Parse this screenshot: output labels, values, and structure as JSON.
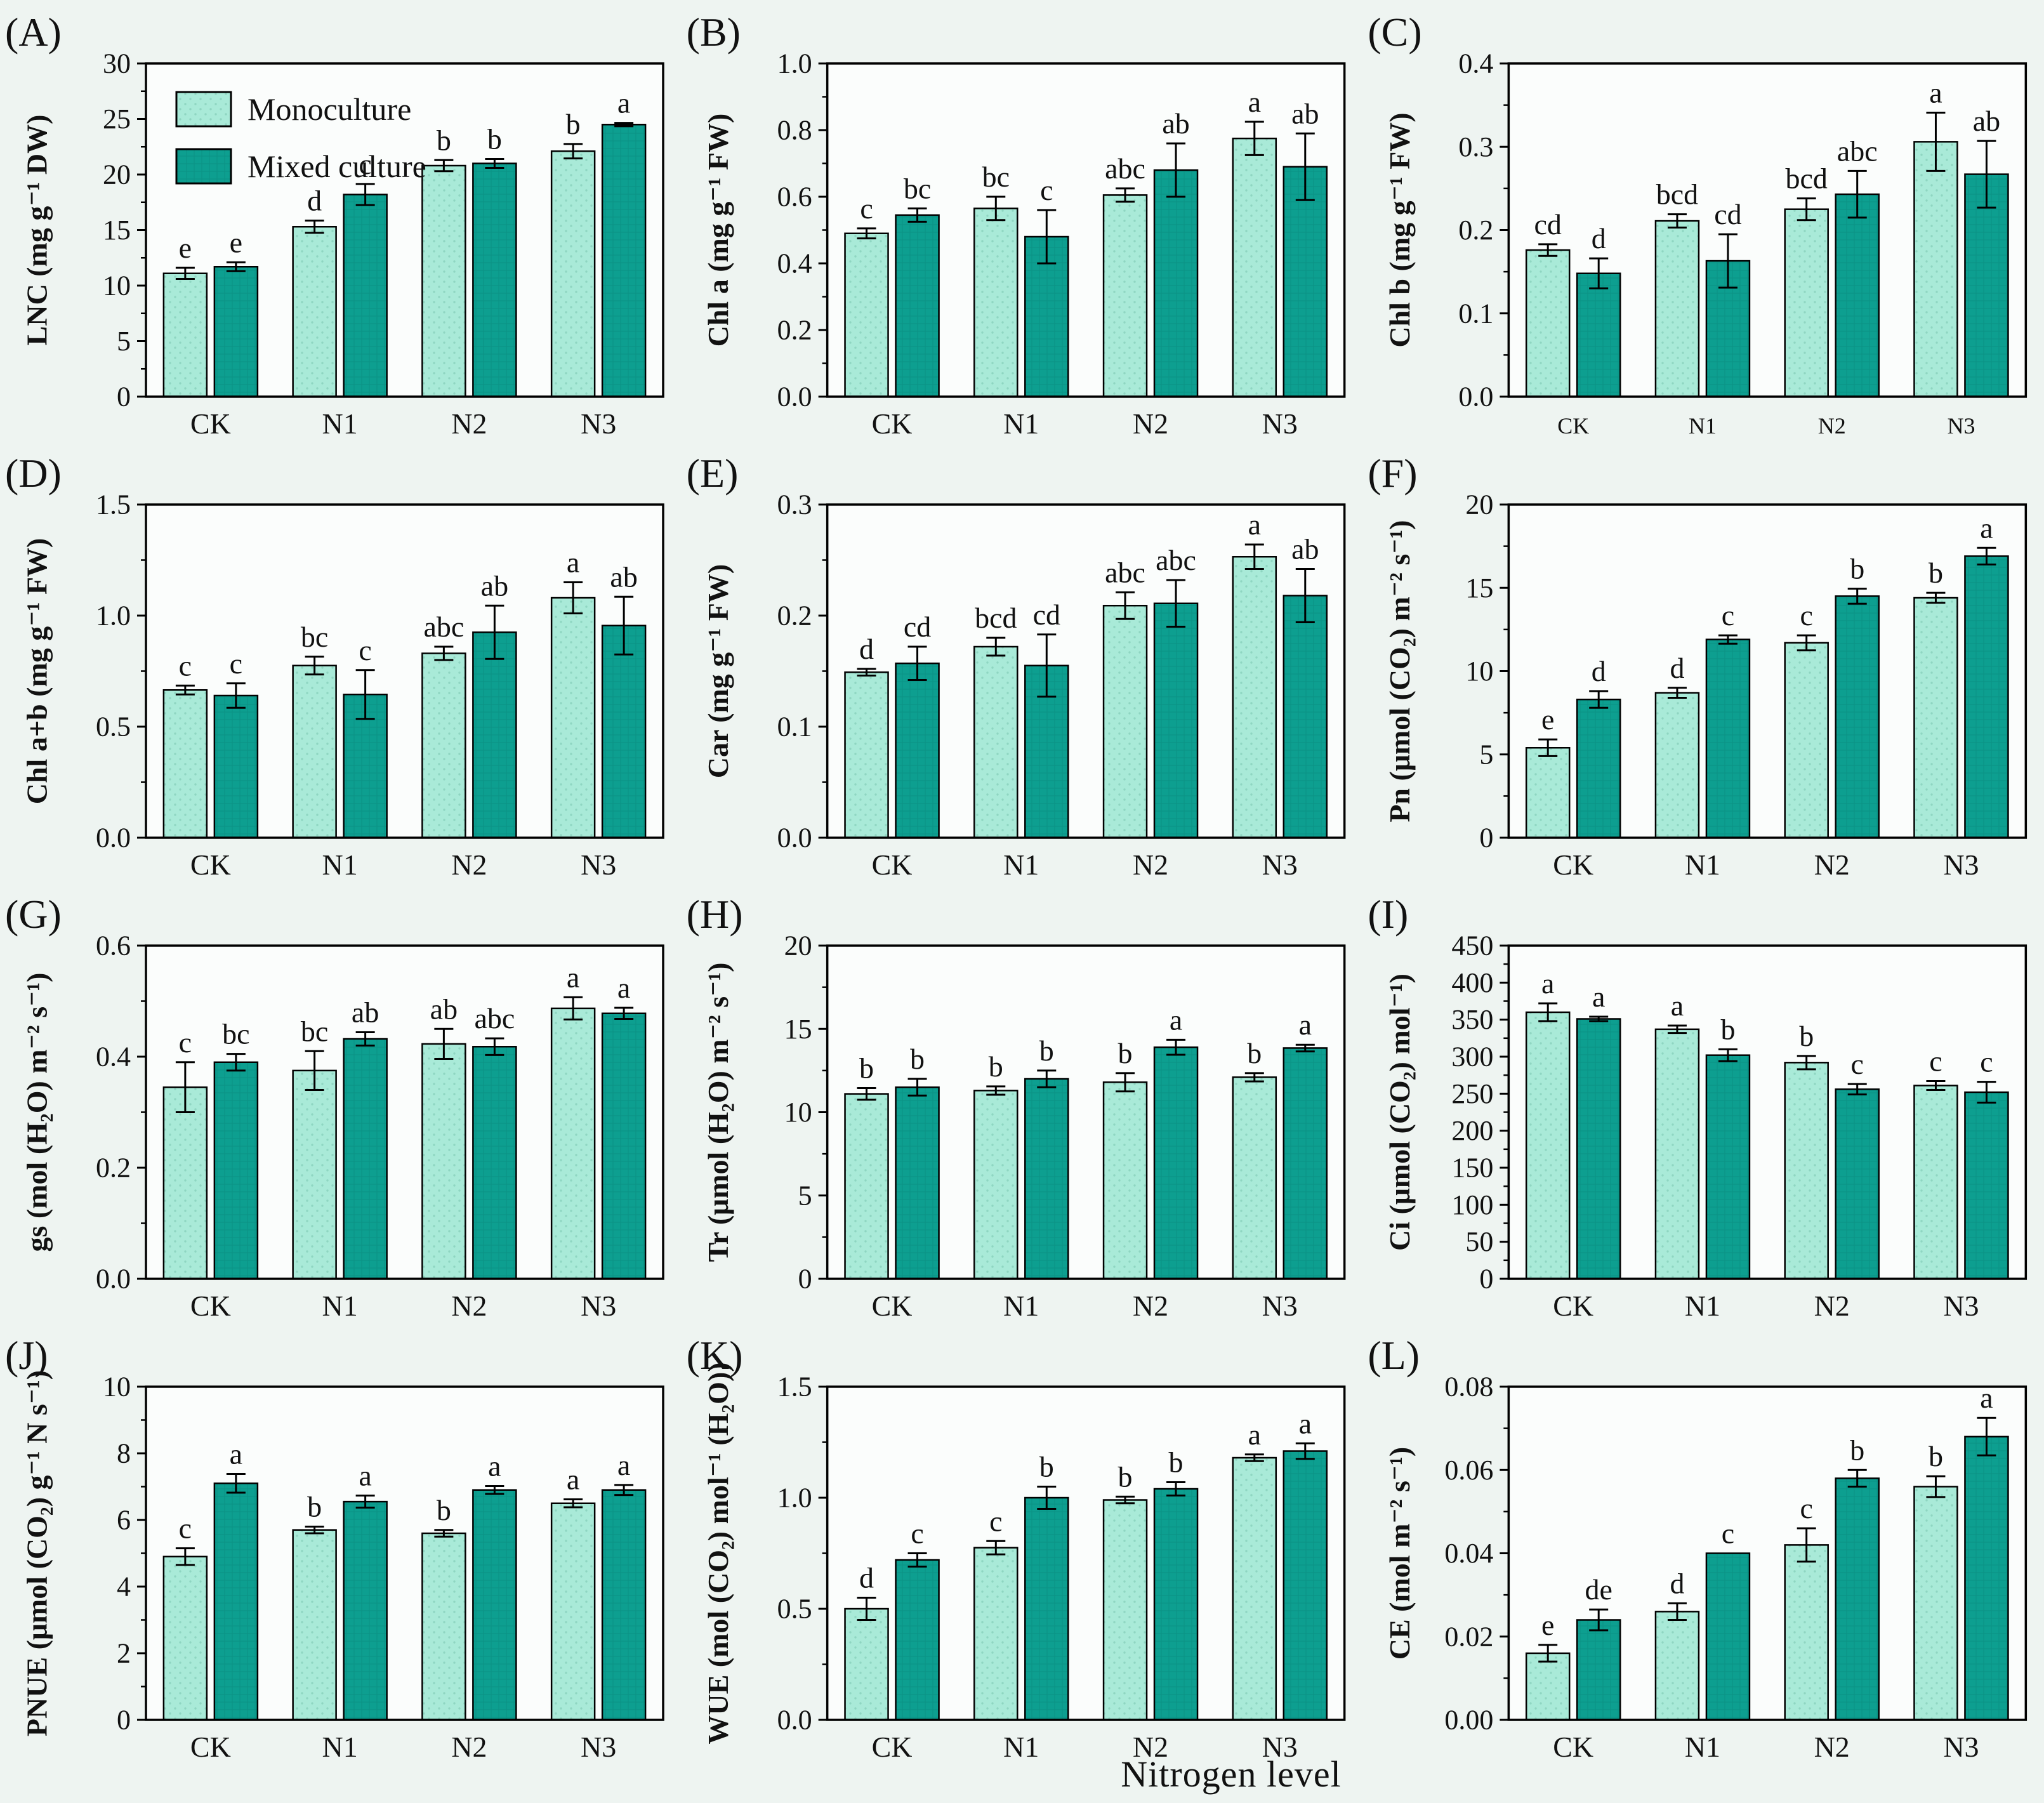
{
  "figure": {
    "x_axis_title": "Nitrogen level",
    "background": "#eef4f1",
    "plot_background": "#fbfdfc"
  },
  "legend": {
    "position": "top-left of panel A",
    "entries": [
      {
        "label": "Monoculture",
        "color": "#a9ead8"
      },
      {
        "label": "Mixed culture",
        "color": "#0d9f90"
      }
    ]
  },
  "colors": {
    "monoculture": "#a9ead8",
    "monoculture_dot": "#8fd6c2",
    "mixed": "#0d9f90",
    "mixed_grid": "#0b8e81",
    "bar_outline": "#000000",
    "axis": "#000000",
    "text": "#111111"
  },
  "chart_data": [
    {
      "type": "bar",
      "panel": "(A)",
      "ylabel": "LNC (mg g⁻¹ DW)",
      "ylim": [
        0,
        30
      ],
      "yticks": [
        0,
        5,
        10,
        15,
        20,
        25,
        30
      ],
      "ytick_labels": [
        "0",
        "5",
        "10",
        "15",
        "20",
        "25",
        "30"
      ],
      "categories": [
        "CK",
        "N1",
        "N2",
        "N3"
      ],
      "legend": true,
      "grid": false,
      "series": [
        {
          "name": "Monoculture",
          "values": [
            11.1,
            15.3,
            20.8,
            22.1
          ],
          "errors": [
            0.5,
            0.55,
            0.5,
            0.65
          ],
          "sig_letters": [
            "e",
            "d",
            "b",
            "b"
          ]
        },
        {
          "name": "Mixed culture",
          "values": [
            11.7,
            18.2,
            21.0,
            24.5
          ],
          "errors": [
            0.4,
            0.95,
            0.4,
            0.15
          ],
          "sig_letters": [
            "e",
            "c",
            "b",
            "a"
          ]
        }
      ]
    },
    {
      "type": "bar",
      "panel": "(B)",
      "ylabel": "Chl a (mg g⁻¹ FW)",
      "ylim": [
        0,
        1.0
      ],
      "yticks": [
        0,
        0.2,
        0.4,
        0.6,
        0.8,
        1.0
      ],
      "ytick_labels": [
        "0.0",
        "0.2",
        "0.4",
        "0.6",
        "0.8",
        "1.0"
      ],
      "categories": [
        "CK",
        "N1",
        "N2",
        "N3"
      ],
      "legend": false,
      "grid": false,
      "series": [
        {
          "name": "Monoculture",
          "values": [
            0.49,
            0.565,
            0.605,
            0.775
          ],
          "errors": [
            0.015,
            0.035,
            0.02,
            0.05
          ],
          "sig_letters": [
            "c",
            "bc",
            "abc",
            "a"
          ]
        },
        {
          "name": "Mixed culture",
          "values": [
            0.545,
            0.48,
            0.68,
            0.69
          ],
          "errors": [
            0.02,
            0.08,
            0.08,
            0.1
          ],
          "sig_letters": [
            "bc",
            "c",
            "ab",
            "ab"
          ]
        }
      ]
    },
    {
      "type": "bar",
      "panel": "(C)",
      "ylabel": "Chl b (mg g⁻¹ FW)",
      "ylim": [
        0,
        0.4
      ],
      "yticks": [
        0,
        0.1,
        0.2,
        0.3,
        0.4
      ],
      "ytick_labels": [
        "0.0",
        "0.1",
        "0.2",
        "0.3",
        "0.4"
      ],
      "categories": [
        "CK",
        "N1",
        "N2",
        "N3"
      ],
      "legend": false,
      "grid": false,
      "xtick_size": "small",
      "series": [
        {
          "name": "Monoculture",
          "values": [
            0.176,
            0.211,
            0.225,
            0.306
          ],
          "errors": [
            0.007,
            0.008,
            0.013,
            0.035
          ],
          "sig_letters": [
            "cd",
            "bcd",
            "bcd",
            "a"
          ]
        },
        {
          "name": "Mixed culture",
          "values": [
            0.148,
            0.163,
            0.243,
            0.267
          ],
          "errors": [
            0.018,
            0.032,
            0.028,
            0.04
          ],
          "sig_letters": [
            "d",
            "cd",
            "abc",
            "ab"
          ]
        }
      ]
    },
    {
      "type": "bar",
      "panel": "(D)",
      "ylabel": "Chl a+b (mg g⁻¹ FW)",
      "ylim": [
        0,
        1.5
      ],
      "yticks": [
        0,
        0.5,
        1.0,
        1.5
      ],
      "ytick_labels": [
        "0.0",
        "0.5",
        "1.0",
        "1.5"
      ],
      "categories": [
        "CK",
        "N1",
        "N2",
        "N3"
      ],
      "legend": false,
      "grid": false,
      "series": [
        {
          "name": "Monoculture",
          "values": [
            0.665,
            0.775,
            0.83,
            1.08
          ],
          "errors": [
            0.02,
            0.04,
            0.03,
            0.07
          ],
          "sig_letters": [
            "c",
            "bc",
            "abc",
            "a"
          ]
        },
        {
          "name": "Mixed culture",
          "values": [
            0.64,
            0.645,
            0.925,
            0.955
          ],
          "errors": [
            0.055,
            0.11,
            0.12,
            0.13
          ],
          "sig_letters": [
            "c",
            "c",
            "ab",
            "ab"
          ]
        }
      ]
    },
    {
      "type": "bar",
      "panel": "(E)",
      "ylabel": "Car (mg g⁻¹ FW)",
      "ylim": [
        0,
        0.3
      ],
      "yticks": [
        0,
        0.1,
        0.2,
        0.3
      ],
      "ytick_labels": [
        "0.0",
        "0.1",
        "0.2",
        "0.3"
      ],
      "categories": [
        "CK",
        "N1",
        "N2",
        "N3"
      ],
      "legend": false,
      "grid": false,
      "series": [
        {
          "name": "Monoculture",
          "values": [
            0.149,
            0.172,
            0.209,
            0.253
          ],
          "errors": [
            0.003,
            0.008,
            0.012,
            0.011
          ],
          "sig_letters": [
            "d",
            "bcd",
            "abc",
            "a"
          ]
        },
        {
          "name": "Mixed culture",
          "values": [
            0.157,
            0.155,
            0.211,
            0.218
          ],
          "errors": [
            0.015,
            0.028,
            0.021,
            0.024
          ],
          "sig_letters": [
            "cd",
            "cd",
            "abc",
            "ab"
          ]
        }
      ]
    },
    {
      "type": "bar",
      "panel": "(F)",
      "ylabel": "Pn (μmol (CO₂) m⁻² s⁻¹)",
      "ylim": [
        0,
        20
      ],
      "yticks": [
        0,
        5,
        10,
        15,
        20
      ],
      "ytick_labels": [
        "0",
        "5",
        "10",
        "15",
        "20"
      ],
      "categories": [
        "CK",
        "N1",
        "N2",
        "N3"
      ],
      "legend": false,
      "grid": false,
      "series": [
        {
          "name": "Monoculture",
          "values": [
            5.4,
            8.7,
            11.7,
            14.4
          ],
          "errors": [
            0.5,
            0.3,
            0.45,
            0.3
          ],
          "sig_letters": [
            "e",
            "d",
            "c",
            "b"
          ]
        },
        {
          "name": "Mixed culture",
          "values": [
            8.3,
            11.9,
            14.5,
            16.9
          ],
          "errors": [
            0.5,
            0.25,
            0.45,
            0.5
          ],
          "sig_letters": [
            "d",
            "c",
            "b",
            "a"
          ]
        }
      ]
    },
    {
      "type": "bar",
      "panel": "(G)",
      "ylabel": "gs (mol (H₂O) m⁻² s⁻¹)",
      "ylim": [
        0,
        0.6
      ],
      "yticks": [
        0,
        0.2,
        0.4,
        0.6
      ],
      "ytick_labels": [
        "0.0",
        "0.2",
        "0.4",
        "0.6"
      ],
      "categories": [
        "CK",
        "N1",
        "N2",
        "N3"
      ],
      "legend": false,
      "grid": false,
      "series": [
        {
          "name": "Monoculture",
          "values": [
            0.345,
            0.375,
            0.423,
            0.487
          ],
          "errors": [
            0.045,
            0.035,
            0.027,
            0.02
          ],
          "sig_letters": [
            "c",
            "bc",
            "ab",
            "a"
          ]
        },
        {
          "name": "Mixed culture",
          "values": [
            0.39,
            0.432,
            0.418,
            0.478
          ],
          "errors": [
            0.015,
            0.012,
            0.015,
            0.01
          ],
          "sig_letters": [
            "bc",
            "ab",
            "abc",
            "a"
          ]
        }
      ]
    },
    {
      "type": "bar",
      "panel": "(H)",
      "ylabel": "Tr (μmol (H₂O) m⁻² s⁻¹)",
      "ylim": [
        0,
        20
      ],
      "yticks": [
        0,
        5,
        10,
        15,
        20
      ],
      "ytick_labels": [
        "0",
        "5",
        "10",
        "15",
        "20"
      ],
      "categories": [
        "CK",
        "N1",
        "N2",
        "N3"
      ],
      "legend": false,
      "grid": false,
      "series": [
        {
          "name": "Monoculture",
          "values": [
            11.1,
            11.3,
            11.8,
            12.1
          ],
          "errors": [
            0.35,
            0.25,
            0.55,
            0.25
          ],
          "sig_letters": [
            "b",
            "b",
            "b",
            "b"
          ]
        },
        {
          "name": "Mixed culture",
          "values": [
            11.5,
            12.0,
            13.9,
            13.85
          ],
          "errors": [
            0.5,
            0.5,
            0.45,
            0.2
          ],
          "sig_letters": [
            "b",
            "b",
            "a",
            "a"
          ]
        }
      ]
    },
    {
      "type": "bar",
      "panel": "(I)",
      "ylabel": "Ci (μmol (CO₂) mol⁻¹)",
      "ylim": [
        0,
        450
      ],
      "yticks": [
        0,
        50,
        100,
        150,
        200,
        250,
        300,
        350,
        400,
        450
      ],
      "ytick_labels": [
        "0",
        "50",
        "100",
        "150",
        "200",
        "250",
        "300",
        "350",
        "400",
        "450"
      ],
      "categories": [
        "CK",
        "N1",
        "N2",
        "N3"
      ],
      "legend": false,
      "grid": false,
      "series": [
        {
          "name": "Monoculture",
          "values": [
            360,
            337,
            292,
            261
          ],
          "errors": [
            12,
            5,
            9,
            6
          ],
          "sig_letters": [
            "a",
            "a",
            "b",
            "c"
          ]
        },
        {
          "name": "Mixed culture",
          "values": [
            351,
            302,
            256,
            252
          ],
          "errors": [
            3,
            8,
            7,
            14
          ],
          "sig_letters": [
            "a",
            "b",
            "c",
            "c"
          ]
        }
      ]
    },
    {
      "type": "bar",
      "panel": "(J)",
      "ylabel": "PNUE (μmol (CO₂) g⁻¹ N s⁻¹)",
      "ylim": [
        0,
        10
      ],
      "yticks": [
        0,
        2,
        4,
        6,
        8,
        10
      ],
      "ytick_labels": [
        "0",
        "2",
        "4",
        "6",
        "8",
        "10"
      ],
      "categories": [
        "CK",
        "N1",
        "N2",
        "N3"
      ],
      "legend": false,
      "grid": false,
      "series": [
        {
          "name": "Monoculture",
          "values": [
            4.9,
            5.7,
            5.6,
            6.5
          ],
          "errors": [
            0.25,
            0.1,
            0.1,
            0.12
          ],
          "sig_letters": [
            "c",
            "b",
            "b",
            "a"
          ]
        },
        {
          "name": "Mixed culture",
          "values": [
            7.1,
            6.55,
            6.9,
            6.9
          ],
          "errors": [
            0.28,
            0.18,
            0.12,
            0.15
          ],
          "sig_letters": [
            "a",
            "a",
            "a",
            "a"
          ]
        }
      ]
    },
    {
      "type": "bar",
      "panel": "(K)",
      "ylabel": "WUE (mol (CO₂) mol⁻¹ (H₂O))",
      "ylim": [
        0,
        1.5
      ],
      "yticks": [
        0,
        0.5,
        1.0,
        1.5
      ],
      "ytick_labels": [
        "0.0",
        "0.5",
        "1.0",
        "1.5"
      ],
      "categories": [
        "CK",
        "N1",
        "N2",
        "N3"
      ],
      "legend": false,
      "grid": false,
      "series": [
        {
          "name": "Monoculture",
          "values": [
            0.5,
            0.775,
            0.99,
            1.18
          ],
          "errors": [
            0.05,
            0.03,
            0.015,
            0.015
          ],
          "sig_letters": [
            "d",
            "c",
            "b",
            "a"
          ]
        },
        {
          "name": "Mixed culture",
          "values": [
            0.72,
            1.0,
            1.04,
            1.21
          ],
          "errors": [
            0.03,
            0.05,
            0.03,
            0.035
          ],
          "sig_letters": [
            "c",
            "b",
            "b",
            "a"
          ]
        }
      ]
    },
    {
      "type": "bar",
      "panel": "(L)",
      "ylabel": "CE (mol  m⁻² s⁻¹)",
      "ylim": [
        0,
        0.08
      ],
      "yticks": [
        0,
        0.02,
        0.04,
        0.06,
        0.08
      ],
      "ytick_labels": [
        "0.00",
        "0.02",
        "0.04",
        "0.06",
        "0.08"
      ],
      "categories": [
        "CK",
        "N1",
        "N2",
        "N3"
      ],
      "legend": false,
      "grid": false,
      "series": [
        {
          "name": "Monoculture",
          "values": [
            0.016,
            0.026,
            0.042,
            0.056
          ],
          "errors": [
            0.002,
            0.002,
            0.004,
            0.0025
          ],
          "sig_letters": [
            "e",
            "d",
            "c",
            "b"
          ]
        },
        {
          "name": "Mixed culture",
          "values": [
            0.024,
            0.04,
            0.058,
            0.068
          ],
          "errors": [
            0.0025,
            0,
            0.002,
            0.0045
          ],
          "sig_letters": [
            "de",
            "c",
            "b",
            "a"
          ]
        }
      ]
    }
  ]
}
